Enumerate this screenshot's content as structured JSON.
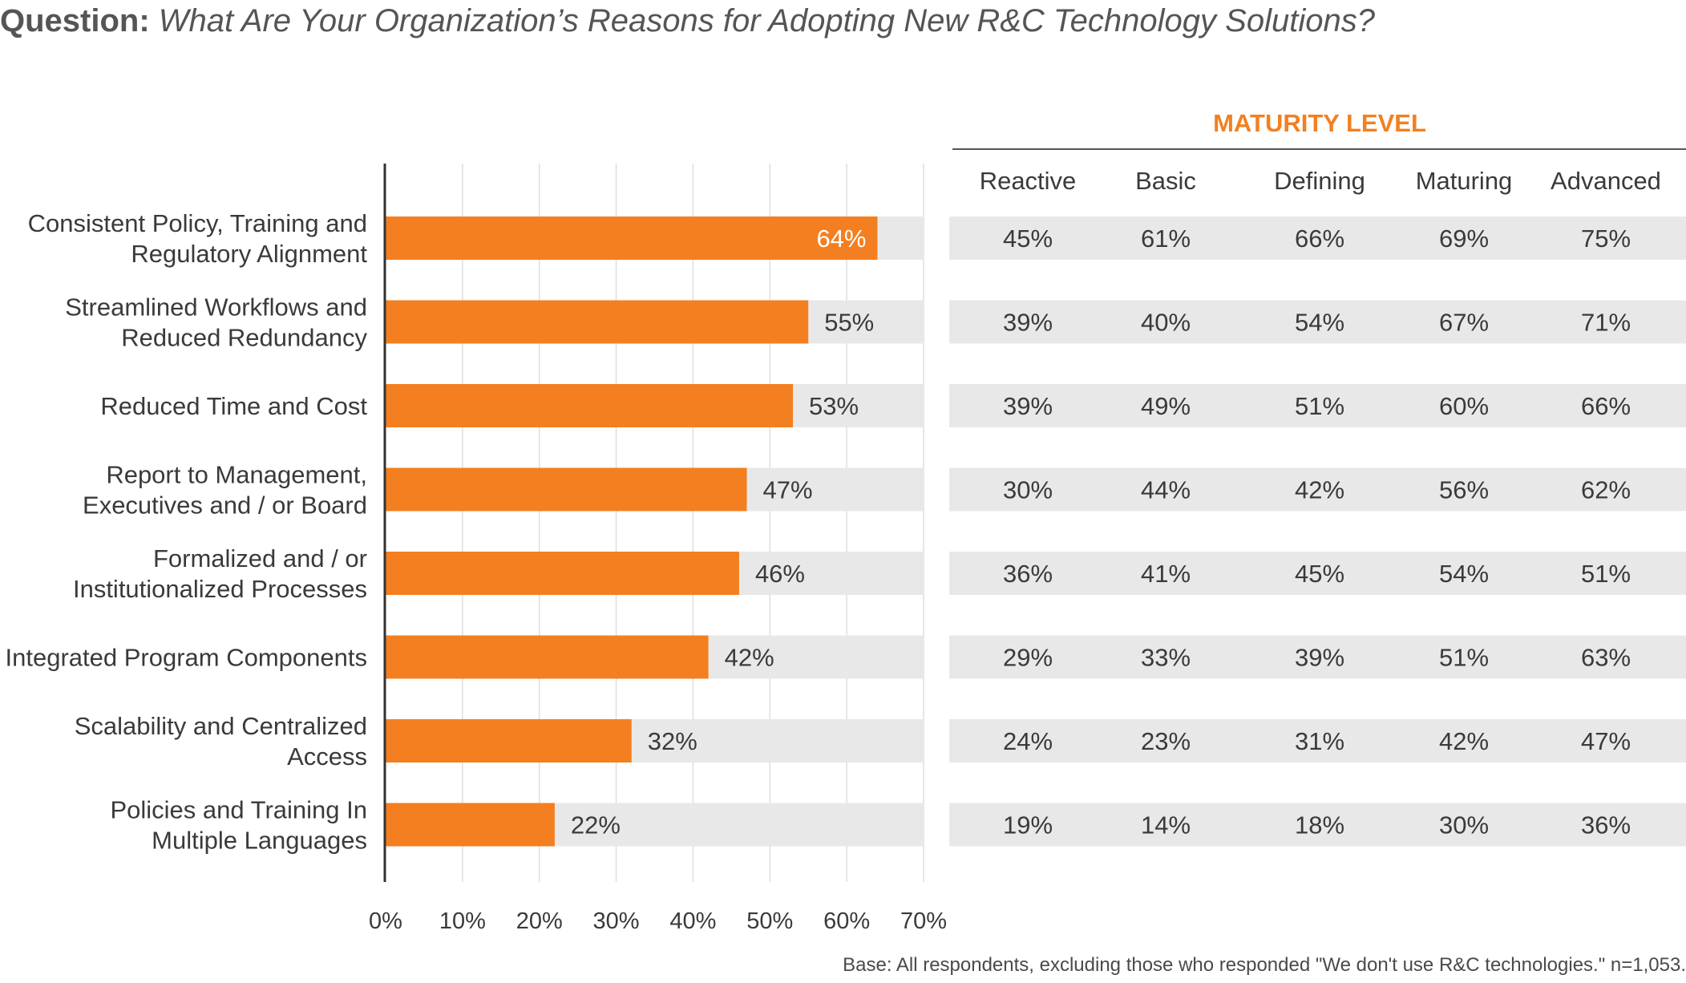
{
  "title": {
    "prefix": "Question:",
    "question": "What Are Your Organization’s Reasons for Adopting New R&C Technology Solutions?"
  },
  "colors": {
    "bar": "#f47f20",
    "track": "#e8e8e8",
    "axis": "#333333",
    "grid": "#dedede",
    "accent": "#f47f20",
    "text": "#3a3a3a"
  },
  "chart_data": {
    "type": "bar",
    "orientation": "horizontal",
    "categories": [
      [
        "Consistent Policy, Training and",
        "Regulatory Alignment"
      ],
      [
        "Streamlined Workflows and",
        "Reduced Redundancy"
      ],
      [
        "Reduced Time and Cost"
      ],
      [
        "Report to Management,",
        "Executives and / or Board"
      ],
      [
        "Formalized and / or",
        "Institutionalized Processes"
      ],
      [
        "Integrated Program Components"
      ],
      [
        "Scalability and Centralized",
        "Access"
      ],
      [
        "Policies and Training In",
        "Multiple Languages"
      ]
    ],
    "values": [
      64,
      55,
      53,
      47,
      46,
      42,
      32,
      22
    ],
    "value_labels": [
      "64%",
      "55%",
      "53%",
      "47%",
      "46%",
      "42%",
      "32%",
      "22%"
    ],
    "xlim": [
      0,
      70
    ],
    "x_ticks": [
      "0%",
      "10%",
      "20%",
      "30%",
      "40%",
      "50%",
      "60%",
      "70%"
    ],
    "grid": true,
    "table": {
      "header": "MATURITY LEVEL",
      "columns": [
        "Reactive",
        "Basic",
        "Defining",
        "Maturing",
        "Advanced"
      ],
      "rows": [
        [
          "45%",
          "61%",
          "66%",
          "69%",
          "75%"
        ],
        [
          "39%",
          "40%",
          "54%",
          "67%",
          "71%"
        ],
        [
          "39%",
          "49%",
          "51%",
          "60%",
          "66%"
        ],
        [
          "30%",
          "44%",
          "42%",
          "56%",
          "62%"
        ],
        [
          "36%",
          "41%",
          "45%",
          "54%",
          "51%"
        ],
        [
          "29%",
          "33%",
          "39%",
          "51%",
          "63%"
        ],
        [
          "24%",
          "23%",
          "31%",
          "42%",
          "47%"
        ],
        [
          "19%",
          "14%",
          "18%",
          "30%",
          "36%"
        ]
      ]
    }
  },
  "footnote": "Base: All respondents, excluding those who responded \"We don't use R&C technologies.\" n=1,053."
}
